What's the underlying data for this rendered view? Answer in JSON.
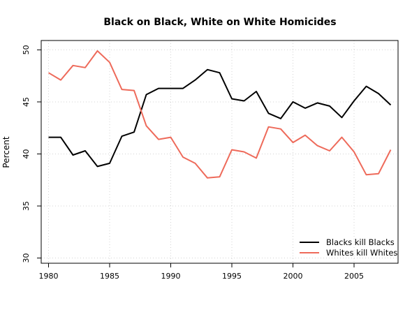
{
  "chart_data": {
    "type": "line",
    "title": "Black on Black, White on White Homicides",
    "xlabel": "",
    "ylabel": "Percent",
    "x": [
      1980,
      1981,
      1982,
      1983,
      1984,
      1985,
      1986,
      1987,
      1988,
      1989,
      1990,
      1991,
      1992,
      1993,
      1994,
      1995,
      1996,
      1997,
      1998,
      1999,
      2000,
      2001,
      2002,
      2003,
      2004,
      2005,
      2006,
      2007,
      2008
    ],
    "series": [
      {
        "name": "Blacks kill Blacks",
        "color": "#000000",
        "values": [
          41.6,
          41.6,
          39.9,
          40.3,
          38.8,
          39.1,
          41.7,
          42.1,
          45.7,
          46.3,
          46.3,
          46.3,
          47.1,
          48.1,
          47.8,
          45.3,
          45.1,
          46.0,
          43.9,
          43.4,
          45.0,
          44.4,
          44.9,
          44.6,
          43.5,
          45.1,
          46.5,
          45.8,
          44.7
        ]
      },
      {
        "name": "Whites kill Whites",
        "color": "#ee6a5a",
        "values": [
          47.8,
          47.1,
          48.5,
          48.3,
          49.9,
          48.8,
          46.2,
          46.1,
          42.7,
          41.4,
          41.6,
          39.7,
          39.1,
          37.7,
          37.8,
          40.4,
          40.2,
          39.6,
          42.6,
          42.4,
          41.1,
          41.8,
          40.8,
          40.3,
          41.6,
          40.2,
          38.0,
          38.1,
          40.4
        ]
      }
    ],
    "xlim": [
      1979.4,
      2008.6
    ],
    "ylim": [
      29.5,
      50.9
    ],
    "xticks": [
      1980,
      1985,
      1990,
      1995,
      2000,
      2005
    ],
    "yticks": [
      30,
      35,
      40,
      45,
      50
    ],
    "grid": true,
    "legend_position": "bottom-right"
  }
}
